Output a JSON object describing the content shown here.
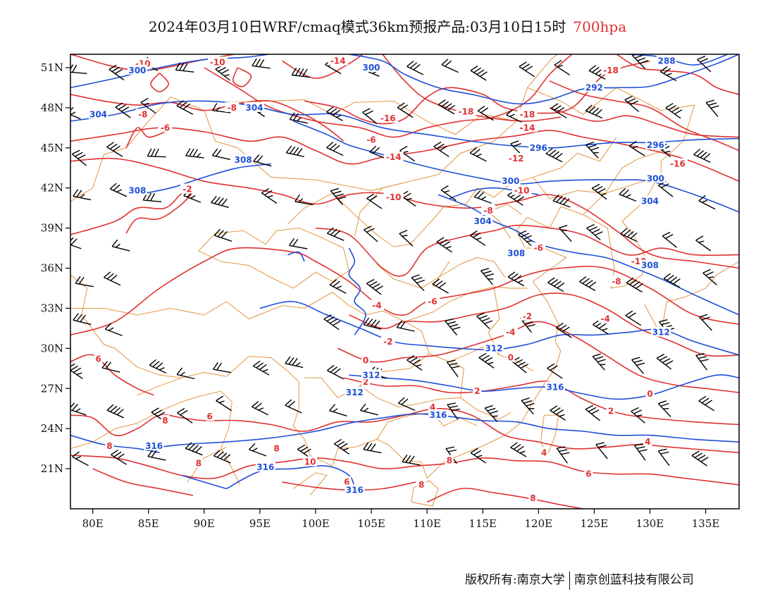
{
  "title": {
    "main": "2024年03月10日WRF/cmaq模式36km预报产品:03月10日15时",
    "level": "700hpa"
  },
  "footer": {
    "left": "版权所有:南京大学",
    "right": "南京创蓝科技有限公司"
  },
  "colors": {
    "temperature_contour": "#e03131",
    "height_contour": "#1f4fd8",
    "border": "#e08a2c",
    "wind_barb": "#000000",
    "title_level": "#e03131"
  },
  "map": {
    "lon_range": [
      78,
      138
    ],
    "lat_range": [
      18,
      52
    ],
    "lon_ticks": [
      "80E",
      "85E",
      "90E",
      "95E",
      "100E",
      "105E",
      "110E",
      "115E",
      "120E",
      "125E",
      "130E",
      "135E"
    ],
    "lat_ticks": [
      "51N",
      "48N",
      "45N",
      "42N",
      "39N",
      "36N",
      "33N",
      "30N",
      "27N",
      "24N",
      "21N"
    ],
    "temperature_labels": [
      {
        "text": "-10",
        "lon": 84.5,
        "lat": 51.3
      },
      {
        "text": "-10",
        "lon": 91.2,
        "lat": 51.4
      },
      {
        "text": "-14",
        "lon": 102.0,
        "lat": 51.5
      },
      {
        "text": "-8",
        "lon": 84.5,
        "lat": 47.5
      },
      {
        "text": "-8",
        "lon": 92.5,
        "lat": 48.0
      },
      {
        "text": "-6",
        "lon": 86.5,
        "lat": 46.5
      },
      {
        "text": "-16",
        "lon": 106.5,
        "lat": 47.2
      },
      {
        "text": "-6",
        "lon": 105.0,
        "lat": 45.6
      },
      {
        "text": "-18",
        "lon": 113.5,
        "lat": 47.7
      },
      {
        "text": "-18",
        "lon": 126.5,
        "lat": 50.8
      },
      {
        "text": "-18",
        "lon": 119.0,
        "lat": 47.5
      },
      {
        "text": "-14",
        "lon": 119.0,
        "lat": 46.5
      },
      {
        "text": "-14",
        "lon": 107.0,
        "lat": 44.3
      },
      {
        "text": "-12",
        "lon": 118.0,
        "lat": 44.2
      },
      {
        "text": "-16",
        "lon": 132.5,
        "lat": 43.8
      },
      {
        "text": "-2",
        "lon": 88.5,
        "lat": 41.9
      },
      {
        "text": "-10",
        "lon": 118.5,
        "lat": 41.8
      },
      {
        "text": "-10",
        "lon": 107.0,
        "lat": 41.3
      },
      {
        "text": "-8",
        "lon": 115.5,
        "lat": 40.3
      },
      {
        "text": "-6",
        "lon": 120.0,
        "lat": 37.5
      },
      {
        "text": "-10",
        "lon": 129.0,
        "lat": 36.5
      },
      {
        "text": "-8",
        "lon": 127.0,
        "lat": 35.0
      },
      {
        "text": "-4",
        "lon": 105.5,
        "lat": 33.2
      },
      {
        "text": "-6",
        "lon": 110.5,
        "lat": 33.5
      },
      {
        "text": "-2",
        "lon": 119.0,
        "lat": 32.4
      },
      {
        "text": "-4",
        "lon": 126.0,
        "lat": 32.2
      },
      {
        "text": "-4",
        "lon": 117.5,
        "lat": 31.2
      },
      {
        "text": "-2",
        "lon": 106.5,
        "lat": 30.5
      },
      {
        "text": "0",
        "lon": 104.5,
        "lat": 29.1
      },
      {
        "text": "0",
        "lon": 117.5,
        "lat": 29.3
      },
      {
        "text": "2",
        "lon": 104.5,
        "lat": 27.5
      },
      {
        "text": "2",
        "lon": 114.5,
        "lat": 26.8
      },
      {
        "text": "0",
        "lon": 130.0,
        "lat": 26.6
      },
      {
        "text": "4",
        "lon": 110.5,
        "lat": 25.6
      },
      {
        "text": "2",
        "lon": 126.5,
        "lat": 25.3
      },
      {
        "text": "6",
        "lon": 80.5,
        "lat": 29.2
      },
      {
        "text": "8",
        "lon": 86.5,
        "lat": 24.6
      },
      {
        "text": "8",
        "lon": 81.5,
        "lat": 22.7
      },
      {
        "text": "6",
        "lon": 90.5,
        "lat": 24.9
      },
      {
        "text": "8",
        "lon": 96.5,
        "lat": 22.5
      },
      {
        "text": "8",
        "lon": 89.5,
        "lat": 21.4
      },
      {
        "text": "10",
        "lon": 99.5,
        "lat": 21.5
      },
      {
        "text": "6",
        "lon": 102.8,
        "lat": 20.0
      },
      {
        "text": "8",
        "lon": 109.5,
        "lat": 19.8
      },
      {
        "text": "8",
        "lon": 112.0,
        "lat": 21.6
      },
      {
        "text": "4",
        "lon": 120.5,
        "lat": 22.2
      },
      {
        "text": "4",
        "lon": 129.8,
        "lat": 23.0
      },
      {
        "text": "6",
        "lon": 124.5,
        "lat": 20.6
      },
      {
        "text": "8",
        "lon": 119.5,
        "lat": 18.8
      }
    ],
    "height_labels": [
      {
        "text": "300",
        "lon": 84.0,
        "lat": 50.8
      },
      {
        "text": "300",
        "lon": 105.0,
        "lat": 51.0
      },
      {
        "text": "288",
        "lon": 131.5,
        "lat": 51.5
      },
      {
        "text": "292",
        "lon": 125.0,
        "lat": 49.5
      },
      {
        "text": "304",
        "lon": 80.5,
        "lat": 47.5
      },
      {
        "text": "304",
        "lon": 94.5,
        "lat": 48.0
      },
      {
        "text": "296",
        "lon": 120.0,
        "lat": 45.0
      },
      {
        "text": "296",
        "lon": 130.5,
        "lat": 45.2
      },
      {
        "text": "308",
        "lon": 93.5,
        "lat": 44.1
      },
      {
        "text": "300",
        "lon": 130.5,
        "lat": 42.7
      },
      {
        "text": "300",
        "lon": 117.5,
        "lat": 42.5
      },
      {
        "text": "308",
        "lon": 84.0,
        "lat": 41.8
      },
      {
        "text": "304",
        "lon": 130.0,
        "lat": 41.0
      },
      {
        "text": "304",
        "lon": 115.0,
        "lat": 39.5
      },
      {
        "text": "308",
        "lon": 118.0,
        "lat": 37.1
      },
      {
        "text": "308",
        "lon": 130.0,
        "lat": 36.2
      },
      {
        "text": "312",
        "lon": 131.0,
        "lat": 31.2
      },
      {
        "text": "312",
        "lon": 116.0,
        "lat": 30.0
      },
      {
        "text": "312",
        "lon": 105.0,
        "lat": 28.0
      },
      {
        "text": "312",
        "lon": 103.5,
        "lat": 26.7
      },
      {
        "text": "316",
        "lon": 121.5,
        "lat": 27.1
      },
      {
        "text": "316",
        "lon": 111.0,
        "lat": 25.0
      },
      {
        "text": "316",
        "lon": 85.5,
        "lat": 22.7
      },
      {
        "text": "316",
        "lon": 95.5,
        "lat": 21.1
      },
      {
        "text": "316",
        "lon": 103.5,
        "lat": 19.4
      }
    ]
  }
}
